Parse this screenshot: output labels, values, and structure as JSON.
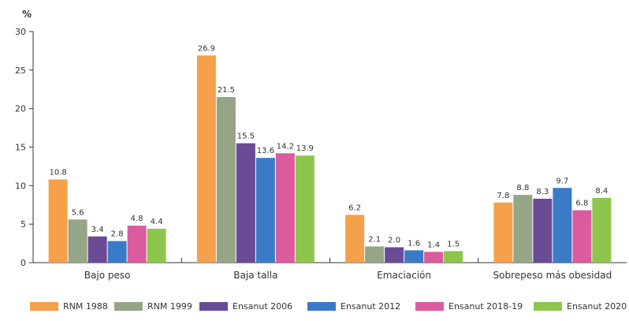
{
  "chart_data": {
    "type": "bar",
    "unit_label": "%",
    "ylim": [
      0,
      30
    ],
    "yticks": [
      0,
      5,
      10,
      15,
      20,
      25,
      30
    ],
    "categories": [
      "Bajo peso",
      "Baja talla",
      "Emaciación",
      "Sobrepeso más obesidad"
    ],
    "series": [
      {
        "name": "RNM 1988",
        "color": "#f5a04a",
        "values": [
          10.8,
          26.9,
          6.2,
          7.8
        ]
      },
      {
        "name": "RNM 1999",
        "color": "#95a585",
        "values": [
          5.6,
          21.5,
          2.1,
          8.8
        ]
      },
      {
        "name": "Ensanut 2006",
        "color": "#6a4b96",
        "values": [
          3.4,
          15.5,
          2.0,
          8.3
        ]
      },
      {
        "name": "Ensanut 2012",
        "color": "#3a7bc8",
        "values": [
          2.8,
          13.6,
          1.6,
          9.7
        ]
      },
      {
        "name": "Ensanut 2018-19",
        "color": "#dc5a9e",
        "values": [
          4.8,
          14.2,
          1.4,
          6.8
        ]
      },
      {
        "name": "Ensanut 2020",
        "color": "#8dc64b",
        "values": [
          4.4,
          13.9,
          1.5,
          8.4
        ]
      }
    ],
    "grid": false,
    "legend_position": "bottom"
  }
}
